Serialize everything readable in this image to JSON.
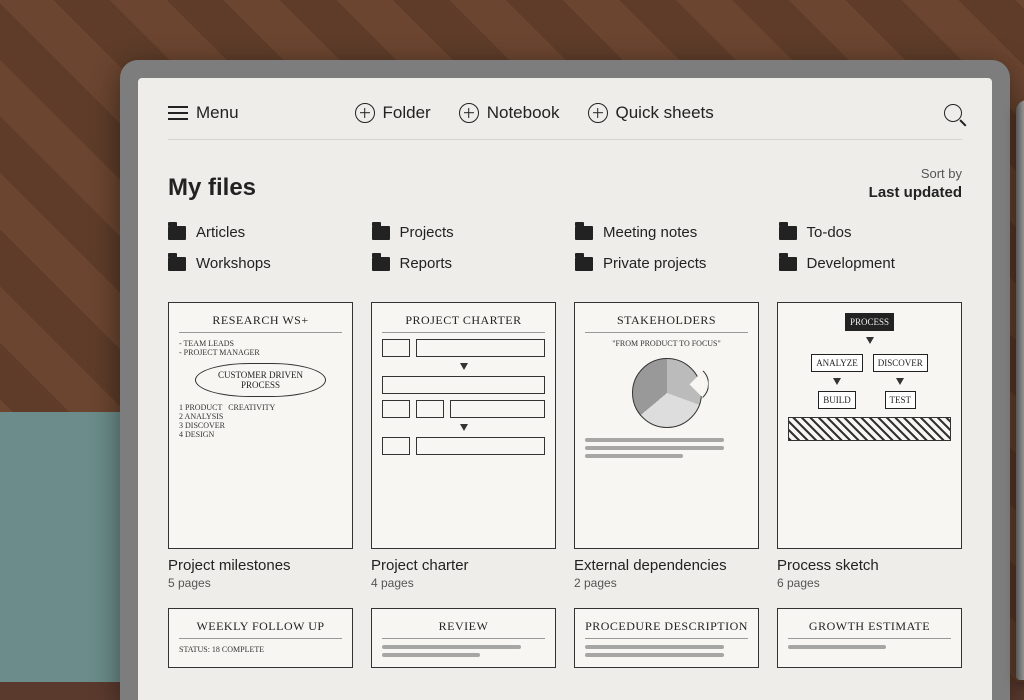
{
  "toolbar": {
    "menu_label": "Menu",
    "folder_label": "Folder",
    "notebook_label": "Notebook",
    "quicksheets_label": "Quick sheets"
  },
  "page_title": "My files",
  "sort": {
    "label": "Sort by",
    "value": "Last updated"
  },
  "folders": [
    {
      "label": "Articles"
    },
    {
      "label": "Projects"
    },
    {
      "label": "Meeting notes"
    },
    {
      "label": "To-dos"
    },
    {
      "label": "Workshops"
    },
    {
      "label": "Reports"
    },
    {
      "label": "Private projects"
    },
    {
      "label": "Development"
    }
  ],
  "notes": [
    {
      "title": "Project milestones",
      "pages": "5 pages",
      "hand_title": "RESEARCH WS+",
      "thumb_type": "mindmap",
      "bubble": "CUSTOMER DRIVEN PROCESS"
    },
    {
      "title": "Project charter",
      "pages": "4 pages",
      "hand_title": "PROJECT CHARTER",
      "thumb_type": "boxes"
    },
    {
      "title": "External dependencies",
      "pages": "2 pages",
      "hand_title": "STAKEHOLDERS",
      "thumb_type": "pie"
    },
    {
      "title": "Process sketch",
      "pages": "6 pages",
      "hand_title": "PROCESS",
      "thumb_type": "flow"
    }
  ],
  "notes_row2": [
    {
      "hand_title": "WEEKLY FOLLOW UP"
    },
    {
      "hand_title": "REVIEW"
    },
    {
      "hand_title": "PROCEDURE DESCRIPTION"
    },
    {
      "hand_title": "GROWTH ESTIMATE"
    }
  ],
  "colors": {
    "screen_bg": "#eeede9",
    "text": "#222222",
    "muted": "#555555",
    "divider": "#d5d4cf"
  }
}
